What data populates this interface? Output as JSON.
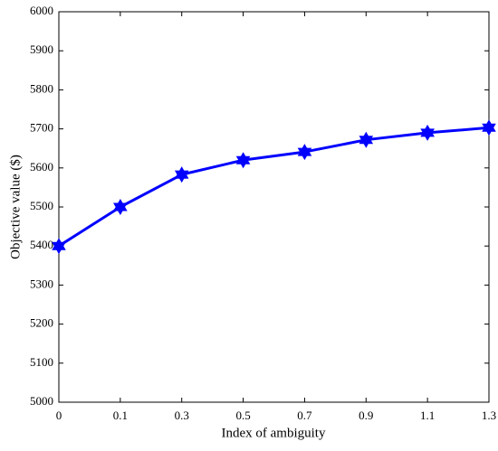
{
  "chart_data": {
    "type": "line",
    "x_label": "Index of ambiguity",
    "y_label": "Objective value ($)",
    "categories": [
      "0",
      "0.1",
      "0.3",
      "0.5",
      "0.7",
      "0.9",
      "1.1",
      "1.3"
    ],
    "series": [
      {
        "name": "Objective value",
        "color": "#0000ff",
        "values": [
          5400,
          5500,
          5583,
          5620,
          5641,
          5672,
          5690,
          5703
        ]
      }
    ],
    "ylim": [
      5000,
      6000
    ],
    "yticks": [
      5000,
      5100,
      5200,
      5300,
      5400,
      5500,
      5600,
      5700,
      5800,
      5900,
      6000
    ],
    "grid": false
  }
}
